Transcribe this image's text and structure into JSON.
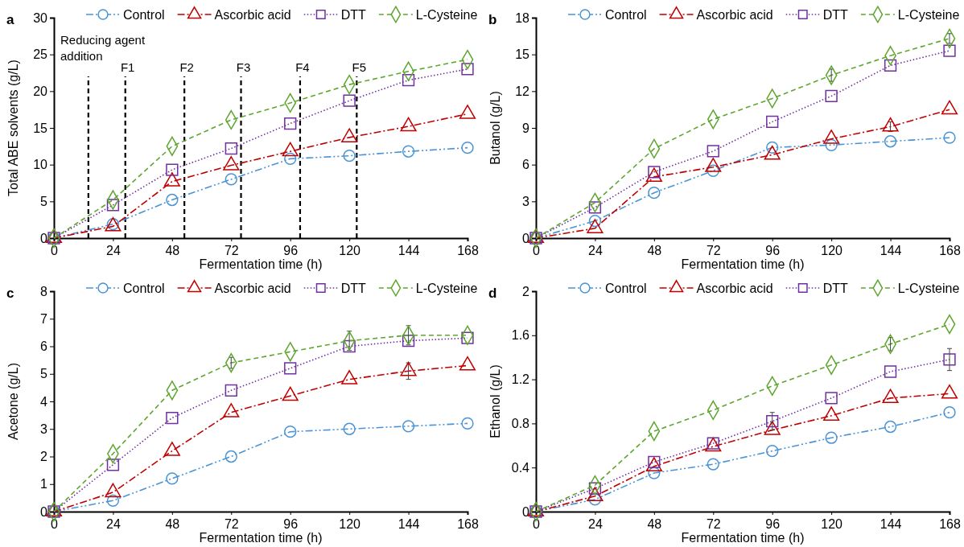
{
  "chart_data": [
    {
      "type": "line",
      "title": "a",
      "xlabel": "Fermentation time (h)",
      "ylabel": "Total ABE solvents (g/L)",
      "x": [
        0,
        24,
        48,
        72,
        96,
        120,
        144,
        168
      ],
      "xlim": [
        0,
        168
      ],
      "xticks": [
        0,
        24,
        48,
        72,
        96,
        120,
        144,
        168
      ],
      "ylim": [
        0,
        30
      ],
      "yticks": [
        0,
        5,
        10,
        15,
        20,
        25,
        30
      ],
      "legend": "top",
      "grid": false,
      "ref_lines": [
        {
          "axis": "x",
          "value": 14,
          "label": "Reducing agent addition",
          "line_style": "dashed",
          "color": "#000000"
        },
        {
          "axis": "x",
          "value": 29,
          "label": "F1",
          "line_style": "dashed",
          "color": "#000000"
        },
        {
          "axis": "x",
          "value": 53,
          "label": "F2",
          "line_style": "dashed",
          "color": "#000000"
        },
        {
          "axis": "x",
          "value": 76,
          "label": "F3",
          "line_style": "dashed",
          "color": "#000000"
        },
        {
          "axis": "x",
          "value": 100,
          "label": "F4",
          "line_style": "dashed",
          "color": "#000000"
        },
        {
          "axis": "x",
          "value": 123,
          "label": "F5",
          "line_style": "dashed",
          "color": "#000000"
        }
      ],
      "series": [
        {
          "name": "Control",
          "color": "#4a94d6",
          "marker": "circle",
          "line_style": "dashdotdot",
          "values": [
            0,
            1.9,
            5.2,
            8.0,
            10.8,
            11.2,
            11.8,
            12.3
          ]
        },
        {
          "name": "Ascorbic acid",
          "color": "#c00000",
          "marker": "triangle",
          "line_style": "dashdot",
          "values": [
            0,
            1.6,
            7.7,
            9.9,
            11.8,
            13.7,
            15.2,
            16.9
          ]
        },
        {
          "name": "DTT",
          "color": "#7030a0",
          "marker": "square",
          "line_style": "dotted",
          "values": [
            0,
            4.5,
            9.3,
            12.2,
            15.6,
            18.7,
            21.5,
            23.0
          ]
        },
        {
          "name": "L-Cysteine",
          "color": "#5ea62f",
          "marker": "diamond",
          "line_style": "dashed",
          "values": [
            0,
            5.2,
            12.5,
            16.1,
            18.4,
            20.9,
            22.7,
            24.3
          ]
        }
      ]
    },
    {
      "type": "line",
      "title": "b",
      "xlabel": "Fermentation time (h)",
      "ylabel": "Butanol (g/L)",
      "x": [
        0,
        24,
        48,
        72,
        96,
        120,
        144,
        168
      ],
      "xlim": [
        0,
        168
      ],
      "xticks": [
        0,
        24,
        48,
        72,
        96,
        120,
        144,
        168
      ],
      "ylim": [
        0,
        18
      ],
      "yticks": [
        0,
        3,
        6,
        9,
        12,
        15,
        18
      ],
      "legend": "top",
      "grid": false,
      "series": [
        {
          "name": "Control",
          "color": "#4a94d6",
          "marker": "circle",
          "line_style": "dashdotdot",
          "values": [
            0,
            1.4,
            3.7,
            5.5,
            7.4,
            7.6,
            7.9,
            8.2
          ]
        },
        {
          "name": "Ascorbic acid",
          "color": "#c00000",
          "marker": "triangle",
          "line_style": "dashdot",
          "values": [
            0,
            0.8,
            5.0,
            5.8,
            6.8,
            8.1,
            9.1,
            10.5
          ],
          "errors": [
            null,
            null,
            null,
            null,
            null,
            null,
            0.4,
            null
          ]
        },
        {
          "name": "DTT",
          "color": "#7030a0",
          "marker": "square",
          "line_style": "dotted",
          "values": [
            0,
            2.5,
            5.4,
            7.1,
            9.5,
            11.6,
            14.1,
            15.3
          ]
        },
        {
          "name": "L-Cysteine",
          "color": "#5ea62f",
          "marker": "diamond",
          "line_style": "dashed",
          "values": [
            0,
            2.9,
            7.3,
            9.7,
            11.4,
            13.3,
            14.9,
            16.3
          ],
          "errors": [
            null,
            null,
            null,
            null,
            null,
            0.5,
            null,
            0.4
          ]
        }
      ]
    },
    {
      "type": "line",
      "title": "c",
      "xlabel": "Fermentation time (h)",
      "ylabel": "Acetone (g/L)",
      "x": [
        0,
        24,
        48,
        72,
        96,
        120,
        144,
        168
      ],
      "xlim": [
        0,
        168
      ],
      "xticks": [
        0,
        24,
        48,
        72,
        96,
        120,
        144,
        168
      ],
      "ylim": [
        0,
        8
      ],
      "yticks": [
        0,
        1,
        2,
        3,
        4,
        5,
        6,
        7,
        8
      ],
      "legend": "top",
      "grid": false,
      "series": [
        {
          "name": "Control",
          "color": "#4a94d6",
          "marker": "circle",
          "line_style": "dashdotdot",
          "values": [
            0,
            0.4,
            1.2,
            2.0,
            2.9,
            3.0,
            3.1,
            3.2
          ]
        },
        {
          "name": "Ascorbic acid",
          "color": "#c00000",
          "marker": "triangle",
          "line_style": "dashdot",
          "values": [
            0,
            0.7,
            2.2,
            3.6,
            4.2,
            4.8,
            5.1,
            5.3
          ],
          "errors": [
            null,
            null,
            null,
            null,
            null,
            null,
            0.3,
            null
          ]
        },
        {
          "name": "DTT",
          "color": "#7030a0",
          "marker": "square",
          "line_style": "dotted",
          "values": [
            0,
            1.7,
            3.4,
            4.4,
            5.2,
            6.0,
            6.2,
            6.3
          ]
        },
        {
          "name": "L-Cysteine",
          "color": "#5ea62f",
          "marker": "diamond",
          "line_style": "dashed",
          "values": [
            0,
            2.1,
            4.4,
            5.4,
            5.8,
            6.2,
            6.4,
            6.4
          ],
          "errors": [
            null,
            null,
            null,
            0.2,
            null,
            0.35,
            0.35,
            null
          ]
        }
      ]
    },
    {
      "type": "line",
      "title": "d",
      "xlabel": "Fermentation time (h)",
      "ylabel": "Ethanol (g/L)",
      "x": [
        0,
        24,
        48,
        72,
        96,
        120,
        144,
        168
      ],
      "xlim": [
        0,
        168
      ],
      "xticks": [
        0,
        24,
        48,
        72,
        96,
        120,
        144,
        168
      ],
      "ylim": [
        0,
        2
      ],
      "yticks": [
        0,
        0.4,
        0.8,
        1.2,
        1.6,
        2
      ],
      "legend": "top",
      "grid": false,
      "series": [
        {
          "name": "Control",
          "color": "#4a94d6",
          "marker": "circle",
          "line_style": "dashdotdot",
          "values": [
            0,
            0.11,
            0.35,
            0.43,
            0.55,
            0.67,
            0.77,
            0.9
          ]
        },
        {
          "name": "Ascorbic acid",
          "color": "#c00000",
          "marker": "triangle",
          "line_style": "dashdot",
          "values": [
            0,
            0.14,
            0.41,
            0.59,
            0.74,
            0.87,
            1.03,
            1.07
          ]
        },
        {
          "name": "DTT",
          "color": "#7030a0",
          "marker": "square",
          "line_style": "dotted",
          "values": [
            0,
            0.21,
            0.45,
            0.62,
            0.82,
            1.03,
            1.27,
            1.38
          ],
          "errors": [
            null,
            null,
            null,
            null,
            0.08,
            null,
            null,
            0.1
          ]
        },
        {
          "name": "L-Cysteine",
          "color": "#5ea62f",
          "marker": "diamond",
          "line_style": "dashed",
          "values": [
            0,
            0.24,
            0.73,
            0.92,
            1.14,
            1.33,
            1.52,
            1.7
          ],
          "errors": [
            null,
            null,
            null,
            null,
            null,
            null,
            0.06,
            null
          ]
        }
      ]
    }
  ]
}
